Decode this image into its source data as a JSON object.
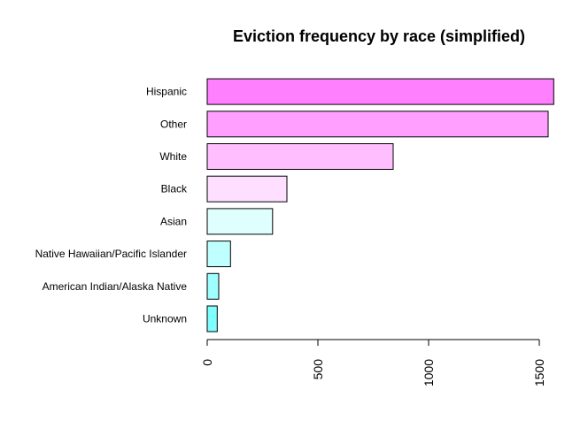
{
  "chart_data": {
    "type": "bar",
    "orientation": "horizontal",
    "title": "Eviction frequency by race (simplified)",
    "xlabel": "",
    "ylabel": "",
    "categories": [
      "Unknown",
      "American Indian/Alaska Native",
      "Native Hawaiian/Pacific Islander",
      "Asian",
      "Black",
      "White",
      "Other",
      "Hispanic"
    ],
    "values": [
      45,
      52,
      105,
      295,
      360,
      840,
      1540,
      1565
    ],
    "colors": [
      "#80FFFF",
      "#9FFFFF",
      "#BFFFFF",
      "#DFFFFF",
      "#FFDFFF",
      "#FFBFFF",
      "#FF9FFF",
      "#FF80FF"
    ],
    "xticks": [
      "0",
      "500",
      "1000",
      "1500"
    ],
    "xlim": [
      0,
      1565
    ],
    "grid": false,
    "legend": "none"
  }
}
